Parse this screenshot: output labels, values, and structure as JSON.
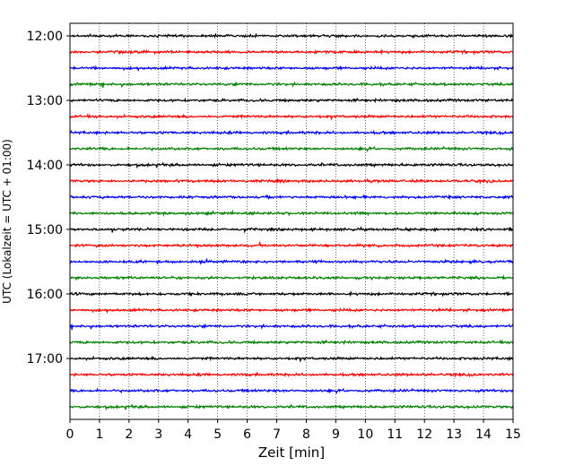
{
  "chart_data": {
    "type": "line",
    "title": "",
    "xlabel": "Zeit  [min]",
    "ylabel": "UTC (Lokalzeit = UTC + 01:00)",
    "xlim": [
      0,
      15
    ],
    "x_ticks": [
      0,
      1,
      2,
      3,
      4,
      5,
      6,
      7,
      8,
      9,
      10,
      11,
      12,
      13,
      14,
      15
    ],
    "y_tick_labels": [
      "12:00",
      "13:00",
      "14:00",
      "15:00",
      "16:00",
      "17:00"
    ],
    "grid": "vertical dotted lines at each minute",
    "trace_interval_minutes": 15,
    "start_time": "12:00",
    "trace_count": 24,
    "trace_colors": [
      "#000000",
      "#ff0000",
      "#0000ff",
      "#008000"
    ]
  }
}
